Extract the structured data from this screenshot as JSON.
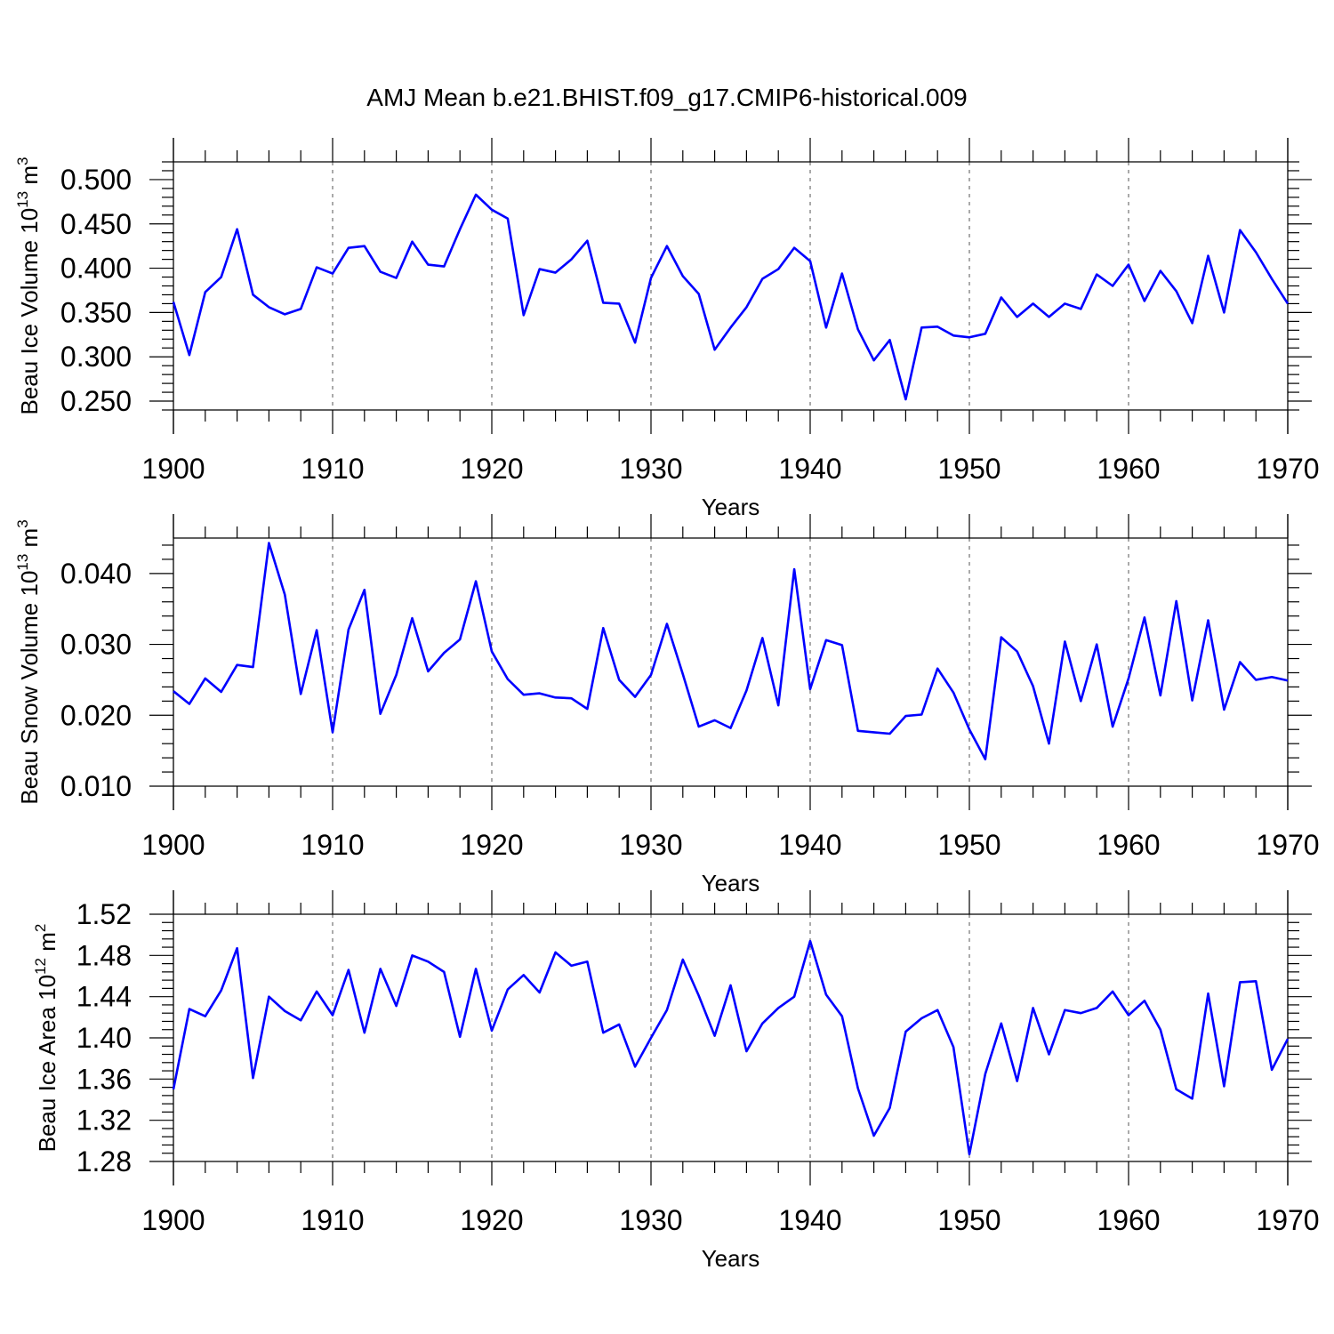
{
  "figure": {
    "title": "AMJ Mean b.e21.BHIST.f09_g17.CMIP6-historical.009"
  },
  "colors": {
    "line": "#0000ff",
    "axis": "#000000",
    "grid": "#555555"
  },
  "chart_data": [
    {
      "type": "line",
      "title": "",
      "xlabel": "Years",
      "ylabel": "Beau Ice Volume 10",
      "ylabel_exponent": "13",
      "ylabel_unit": "m",
      "ylabel_unit_exponent": "3",
      "xlim": [
        1900,
        1970
      ],
      "ylim": [
        0.24,
        0.52
      ],
      "xticks": [
        1900,
        1910,
        1920,
        1930,
        1940,
        1950,
        1960,
        1970
      ],
      "yticks": [
        0.25,
        0.3,
        0.35,
        0.4,
        0.45,
        0.5
      ],
      "ytick_labels": [
        "0.250",
        "0.300",
        "0.350",
        "0.400",
        "0.450",
        "0.500"
      ],
      "y_minor_step": 0.01,
      "x_minor_step": 2,
      "grid": "vertical dashed at major x ticks",
      "series": [
        {
          "name": "Beau Ice Volume",
          "x": [
            1900,
            1901,
            1902,
            1903,
            1904,
            1905,
            1906,
            1907,
            1908,
            1909,
            1910,
            1911,
            1912,
            1913,
            1914,
            1915,
            1916,
            1917,
            1918,
            1919,
            1920,
            1921,
            1922,
            1923,
            1924,
            1925,
            1926,
            1927,
            1928,
            1929,
            1930,
            1931,
            1932,
            1933,
            1934,
            1935,
            1936,
            1937,
            1938,
            1939,
            1940,
            1941,
            1942,
            1943,
            1944,
            1945,
            1946,
            1947,
            1948,
            1949,
            1950,
            1951,
            1952,
            1953,
            1954,
            1955,
            1956,
            1957,
            1958,
            1959,
            1960,
            1961,
            1962,
            1963,
            1964,
            1965,
            1966,
            1967,
            1968,
            1969,
            1970
          ],
          "values": [
            0.362,
            0.302,
            0.373,
            0.39,
            0.444,
            0.37,
            0.356,
            0.348,
            0.354,
            0.401,
            0.394,
            0.423,
            0.425,
            0.396,
            0.389,
            0.43,
            0.404,
            0.402,
            0.444,
            0.483,
            0.466,
            0.456,
            0.347,
            0.399,
            0.395,
            0.41,
            0.431,
            0.361,
            0.36,
            0.316,
            0.389,
            0.425,
            0.391,
            0.371,
            0.308,
            0.333,
            0.356,
            0.388,
            0.399,
            0.423,
            0.408,
            0.333,
            0.394,
            0.331,
            0.296,
            0.319,
            0.252,
            0.333,
            0.334,
            0.324,
            0.322,
            0.326,
            0.367,
            0.345,
            0.36,
            0.345,
            0.36,
            0.354,
            0.393,
            0.38,
            0.404,
            0.363,
            0.397,
            0.374,
            0.338,
            0.414,
            0.35,
            0.443,
            0.418,
            0.388,
            0.36
          ]
        }
      ]
    },
    {
      "type": "line",
      "title": "",
      "xlabel": "Years",
      "ylabel": "Beau Snow Volume 10",
      "ylabel_exponent": "13",
      "ylabel_unit": "m",
      "ylabel_unit_exponent": "3",
      "xlim": [
        1900,
        1970
      ],
      "ylim": [
        0.01,
        0.045
      ],
      "xticks": [
        1900,
        1910,
        1920,
        1930,
        1940,
        1950,
        1960,
        1970
      ],
      "yticks": [
        0.01,
        0.02,
        0.03,
        0.04
      ],
      "ytick_labels": [
        "0.010",
        "0.020",
        "0.030",
        "0.040"
      ],
      "y_minor_step": 0.002,
      "x_minor_step": 2,
      "grid": "vertical dashed at major x ticks",
      "series": [
        {
          "name": "Beau Snow Volume",
          "x": [
            1900,
            1901,
            1902,
            1903,
            1904,
            1905,
            1906,
            1907,
            1908,
            1909,
            1910,
            1911,
            1912,
            1913,
            1914,
            1915,
            1916,
            1917,
            1918,
            1919,
            1920,
            1921,
            1922,
            1923,
            1924,
            1925,
            1926,
            1927,
            1928,
            1929,
            1930,
            1931,
            1932,
            1933,
            1934,
            1935,
            1936,
            1937,
            1938,
            1939,
            1940,
            1941,
            1942,
            1943,
            1944,
            1945,
            1946,
            1947,
            1948,
            1949,
            1950,
            1951,
            1952,
            1953,
            1954,
            1955,
            1956,
            1957,
            1958,
            1959,
            1960,
            1961,
            1962,
            1963,
            1964,
            1965,
            1966,
            1967,
            1968,
            1969,
            1970
          ],
          "values": [
            0.0234,
            0.0216,
            0.0252,
            0.0233,
            0.0271,
            0.0268,
            0.0443,
            0.037,
            0.023,
            0.032,
            0.0176,
            0.0321,
            0.0377,
            0.0202,
            0.0257,
            0.0337,
            0.0262,
            0.0288,
            0.0307,
            0.0389,
            0.029,
            0.0251,
            0.0229,
            0.0231,
            0.0225,
            0.0224,
            0.0209,
            0.0323,
            0.025,
            0.0226,
            0.0257,
            0.0329,
            0.0258,
            0.0184,
            0.0193,
            0.0182,
            0.0235,
            0.0309,
            0.0214,
            0.0406,
            0.0237,
            0.0306,
            0.0299,
            0.0178,
            0.0176,
            0.0174,
            0.0199,
            0.0201,
            0.0266,
            0.0232,
            0.018,
            0.0138,
            0.031,
            0.029,
            0.0241,
            0.016,
            0.0304,
            0.022,
            0.03,
            0.0184,
            0.0252,
            0.0338,
            0.0228,
            0.0361,
            0.0221,
            0.0334,
            0.0208,
            0.0275,
            0.025,
            0.0254,
            0.0249
          ]
        }
      ]
    },
    {
      "type": "line",
      "title": "",
      "xlabel": "Years",
      "ylabel": "Beau Ice Area 10",
      "ylabel_exponent": "12",
      "ylabel_unit": "m",
      "ylabel_unit_exponent": "2",
      "xlim": [
        1900,
        1970
      ],
      "ylim": [
        1.28,
        1.52
      ],
      "xticks": [
        1900,
        1910,
        1920,
        1930,
        1940,
        1950,
        1960,
        1970
      ],
      "yticks": [
        1.28,
        1.32,
        1.36,
        1.4,
        1.44,
        1.48,
        1.52
      ],
      "ytick_labels": [
        "1.28",
        "1.32",
        "1.36",
        "1.40",
        "1.44",
        "1.48",
        "1.52"
      ],
      "y_minor_step": 0.008,
      "x_minor_step": 2,
      "grid": "vertical dashed at major x ticks",
      "series": [
        {
          "name": "Beau Ice Area",
          "x": [
            1900,
            1901,
            1902,
            1903,
            1904,
            1905,
            1906,
            1907,
            1908,
            1909,
            1910,
            1911,
            1912,
            1913,
            1914,
            1915,
            1916,
            1917,
            1918,
            1919,
            1920,
            1921,
            1922,
            1923,
            1924,
            1925,
            1926,
            1927,
            1928,
            1929,
            1930,
            1931,
            1932,
            1933,
            1934,
            1935,
            1936,
            1937,
            1938,
            1939,
            1940,
            1941,
            1942,
            1943,
            1944,
            1945,
            1946,
            1947,
            1948,
            1949,
            1950,
            1951,
            1952,
            1953,
            1954,
            1955,
            1956,
            1957,
            1958,
            1959,
            1960,
            1961,
            1962,
            1963,
            1964,
            1965,
            1966,
            1967,
            1968,
            1969,
            1970
          ],
          "values": [
            1.35,
            1.428,
            1.421,
            1.446,
            1.487,
            1.361,
            1.44,
            1.426,
            1.417,
            1.445,
            1.422,
            1.466,
            1.405,
            1.467,
            1.431,
            1.48,
            1.474,
            1.464,
            1.401,
            1.467,
            1.407,
            1.447,
            1.461,
            1.444,
            1.483,
            1.47,
            1.474,
            1.405,
            1.413,
            1.372,
            1.4,
            1.427,
            1.476,
            1.441,
            1.402,
            1.451,
            1.387,
            1.414,
            1.429,
            1.44,
            1.494,
            1.442,
            1.421,
            1.351,
            1.305,
            1.332,
            1.406,
            1.419,
            1.427,
            1.391,
            1.287,
            1.365,
            1.414,
            1.358,
            1.429,
            1.384,
            1.427,
            1.424,
            1.429,
            1.445,
            1.422,
            1.436,
            1.408,
            1.35,
            1.341,
            1.443,
            1.353,
            1.454,
            1.455,
            1.369,
            1.399
          ]
        }
      ]
    }
  ]
}
